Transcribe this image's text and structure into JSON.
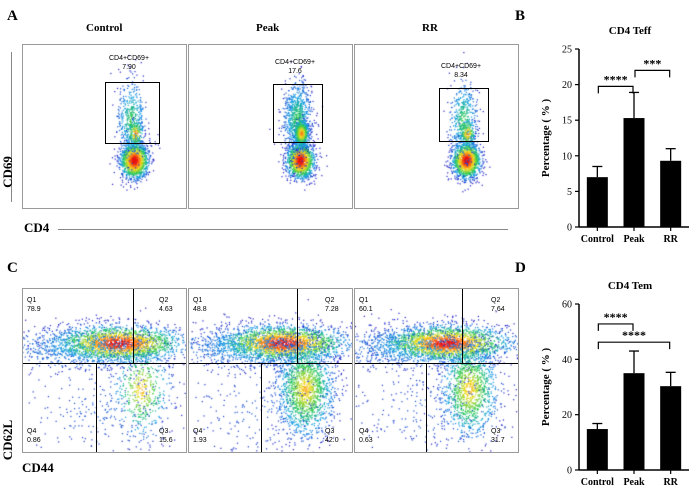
{
  "panel_letters": {
    "a": "A",
    "b": "B",
    "c": "C",
    "d": "D"
  },
  "conditions": [
    "Control",
    "Peak",
    "RR"
  ],
  "flow_a": {
    "y_axis": "CD69",
    "x_axis": "CD4",
    "gate_name": "CD4+CD69+",
    "gate_values": [
      "7.90",
      "17.6",
      "8.34"
    ]
  },
  "flow_c": {
    "y_axis": "CD62L",
    "x_axis": "CD44",
    "quadrant_names": {
      "q1": "Q1",
      "q2": "Q2",
      "q3": "Q3",
      "q4": "Q4"
    },
    "plots": [
      {
        "q1": "78.9",
        "q2": "4.63",
        "q3": "15.6",
        "q4": "0.86"
      },
      {
        "q1": "48.8",
        "q2": "7.28",
        "q3": "42.0",
        "q4": "1.93"
      },
      {
        "q1": "60.1",
        "q2": "7.64",
        "q3": "31.7",
        "q4": "0.63"
      }
    ]
  },
  "chart_data": [
    {
      "type": "bar",
      "title": "CD4 Teff",
      "categories": [
        "Control",
        "Peak",
        "RR"
      ],
      "values": [
        7.0,
        15.3,
        9.3
      ],
      "errors": [
        1.5,
        3.6,
        1.7
      ],
      "xlabel": "",
      "ylabel": "Percentage ( % )",
      "ylim": [
        0,
        25
      ],
      "yticks": [
        0,
        5,
        10,
        15,
        20,
        25
      ],
      "significance": [
        {
          "from": 0,
          "to": 1,
          "label": "****"
        },
        {
          "from": 1,
          "to": 2,
          "label": "***"
        }
      ]
    },
    {
      "type": "bar",
      "title": "CD4 Tem",
      "categories": [
        "Control",
        "Peak",
        "RR"
      ],
      "values": [
        14.8,
        35.0,
        30.3
      ],
      "errors": [
        2.0,
        8.0,
        5.0
      ],
      "xlabel": "",
      "ylabel": "Percentage ( % )",
      "ylim": [
        0,
        60
      ],
      "yticks": [
        0,
        20,
        40,
        60
      ],
      "significance": [
        {
          "from": 0,
          "to": 1,
          "label": "****"
        },
        {
          "from": 0,
          "to": 2,
          "label": "****"
        }
      ]
    }
  ],
  "colors": {
    "bar": "#000000",
    "axis": "#000000",
    "panel_border": "#9a9a9a",
    "gate": "#000000"
  }
}
